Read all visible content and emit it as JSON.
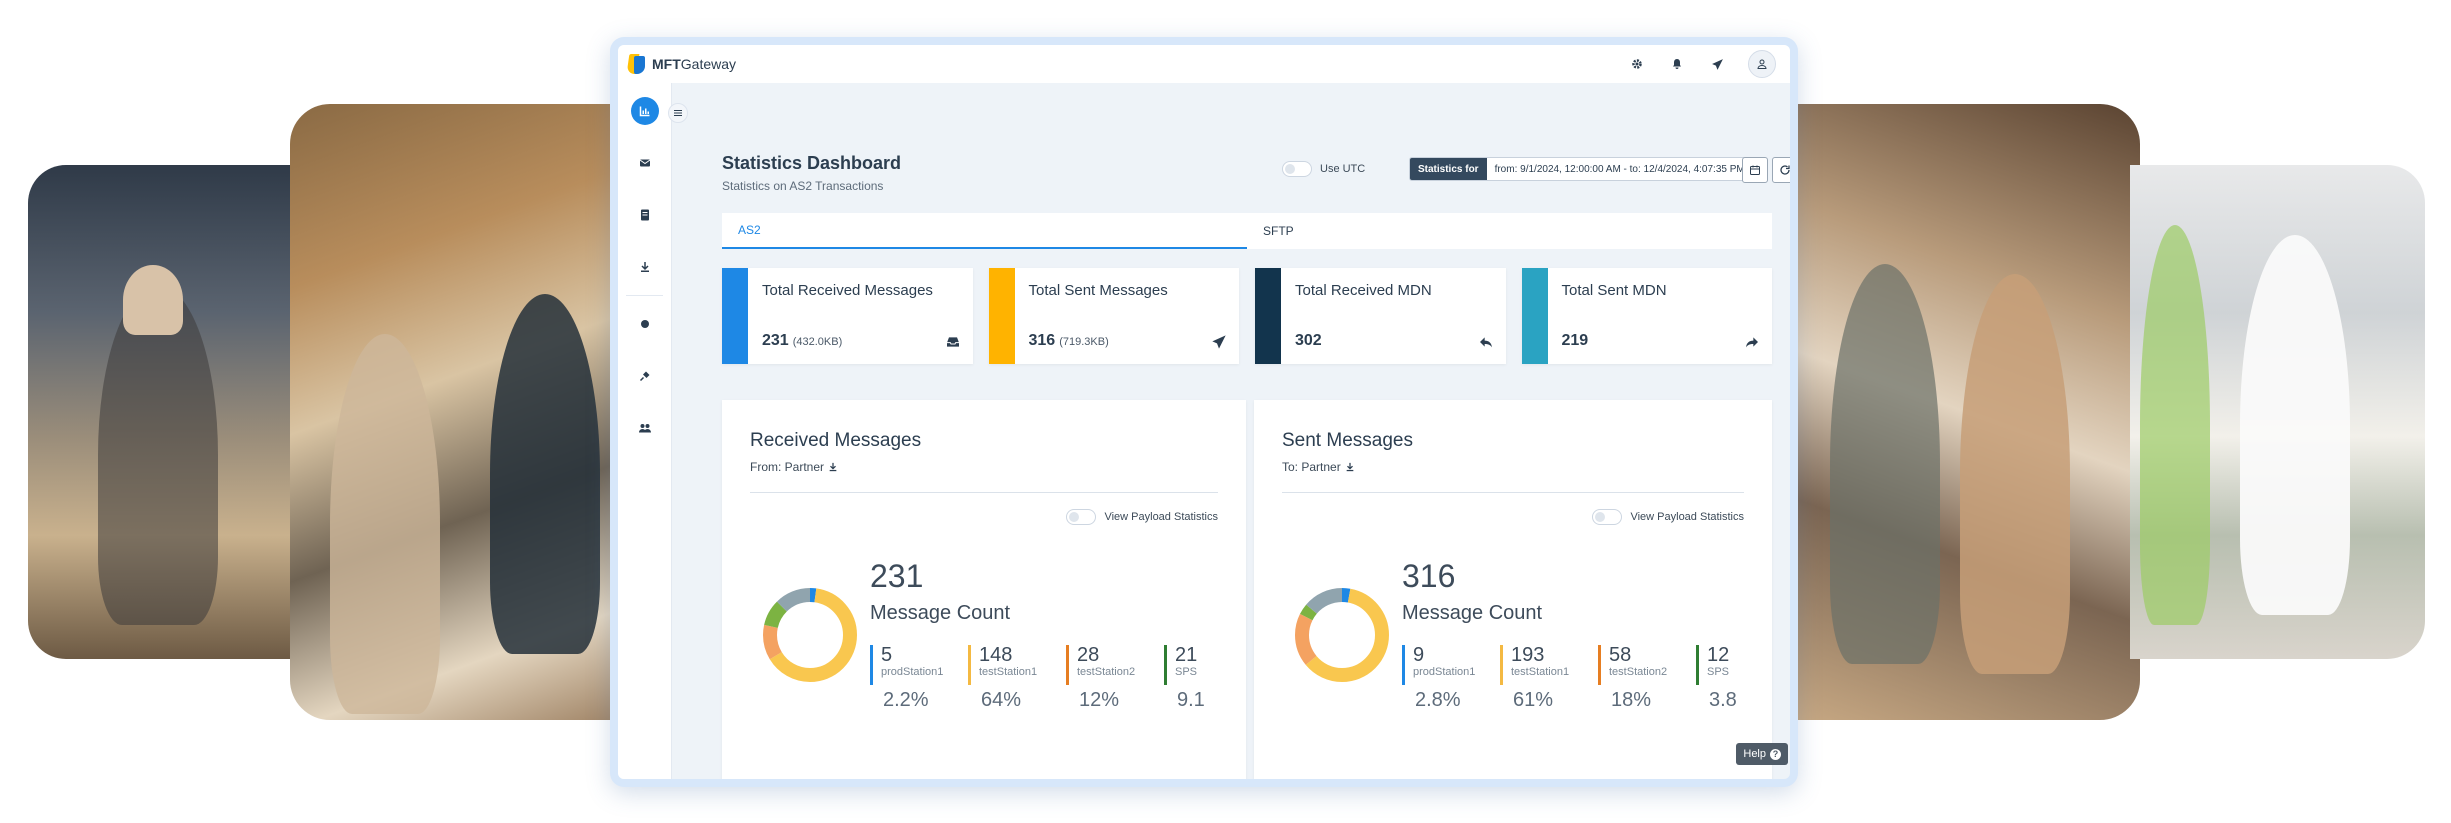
{
  "app": {
    "brand_bold": "MFT",
    "brand_rest": "Gateway"
  },
  "topbar": {
    "icons": [
      "gear-icon",
      "bell-icon",
      "paper-plane-icon",
      "user-icon"
    ]
  },
  "sidebar": {
    "items": [
      "chart-icon",
      "envelope-icon",
      "file-icon",
      "download-icon",
      "circle-icon",
      "plug-icon",
      "users-icon"
    ],
    "toggle": "menu-icon"
  },
  "header": {
    "title": "Statistics Dashboard",
    "subtitle": "Statistics on AS2 Transactions",
    "utc_label": "Use UTC",
    "stats_for_label": "Statistics for",
    "stats_for_value": "from: 9/1/2024, 12:00:00 AM - to: 12/4/2024, 4:07:35 PM"
  },
  "tabs": [
    {
      "label": "AS2",
      "active": true
    },
    {
      "label": "SFTP",
      "active": false
    }
  ],
  "kpis": [
    {
      "title": "Total Received Messages",
      "value": "231",
      "size": "(432.0KB)",
      "color": "#1e88e5",
      "icon": "inbox-icon"
    },
    {
      "title": "Total Sent Messages",
      "value": "316",
      "size": "(719.3KB)",
      "color": "#ffb300",
      "icon": "send-icon"
    },
    {
      "title": "Total Received MDN",
      "value": "302",
      "size": "",
      "color": "#12344d",
      "icon": "reply-icon"
    },
    {
      "title": "Total Sent MDN",
      "value": "219",
      "size": "",
      "color": "#2aa3c2",
      "icon": "share-icon"
    }
  ],
  "received_panel": {
    "title": "Received Messages",
    "sub": "From: Partner",
    "payload_toggle": "View Payload Statistics",
    "count": "231",
    "count_label": "Message Count",
    "stations": [
      {
        "count": "5",
        "name": "prodStation1",
        "pct": "2.2%",
        "color": "#1e88e5"
      },
      {
        "count": "148",
        "name": "testStation1",
        "pct": "64%",
        "color": "#f4b942"
      },
      {
        "count": "28",
        "name": "testStation2",
        "pct": "12%",
        "color": "#e67e22"
      },
      {
        "count": "21",
        "name": "SPS",
        "pct": "9.1",
        "color": "#2e7d32"
      }
    ],
    "donut": [
      {
        "value": 5,
        "color": "#1e88e5"
      },
      {
        "value": 148,
        "color": "#f9c74f"
      },
      {
        "value": 28,
        "color": "#f4a261"
      },
      {
        "value": 21,
        "color": "#7cb342"
      },
      {
        "value": 29,
        "color": "#90a4ae"
      }
    ]
  },
  "sent_panel": {
    "title": "Sent Messages",
    "sub": "To: Partner",
    "payload_toggle": "View Payload Statistics",
    "count": "316",
    "count_label": "Message Count",
    "stations": [
      {
        "count": "9",
        "name": "prodStation1",
        "pct": "2.8%",
        "color": "#1e88e5"
      },
      {
        "count": "193",
        "name": "testStation1",
        "pct": "61%",
        "color": "#f4b942"
      },
      {
        "count": "58",
        "name": "testStation2",
        "pct": "18%",
        "color": "#e67e22"
      },
      {
        "count": "12",
        "name": "SPS",
        "pct": "3.8",
        "color": "#2e7d32"
      }
    ],
    "donut": [
      {
        "value": 9,
        "color": "#1e88e5"
      },
      {
        "value": 193,
        "color": "#f9c74f"
      },
      {
        "value": 58,
        "color": "#f4a261"
      },
      {
        "value": 12,
        "color": "#7cb342"
      },
      {
        "value": 44,
        "color": "#90a4ae"
      }
    ]
  },
  "help": {
    "label": "Help"
  }
}
